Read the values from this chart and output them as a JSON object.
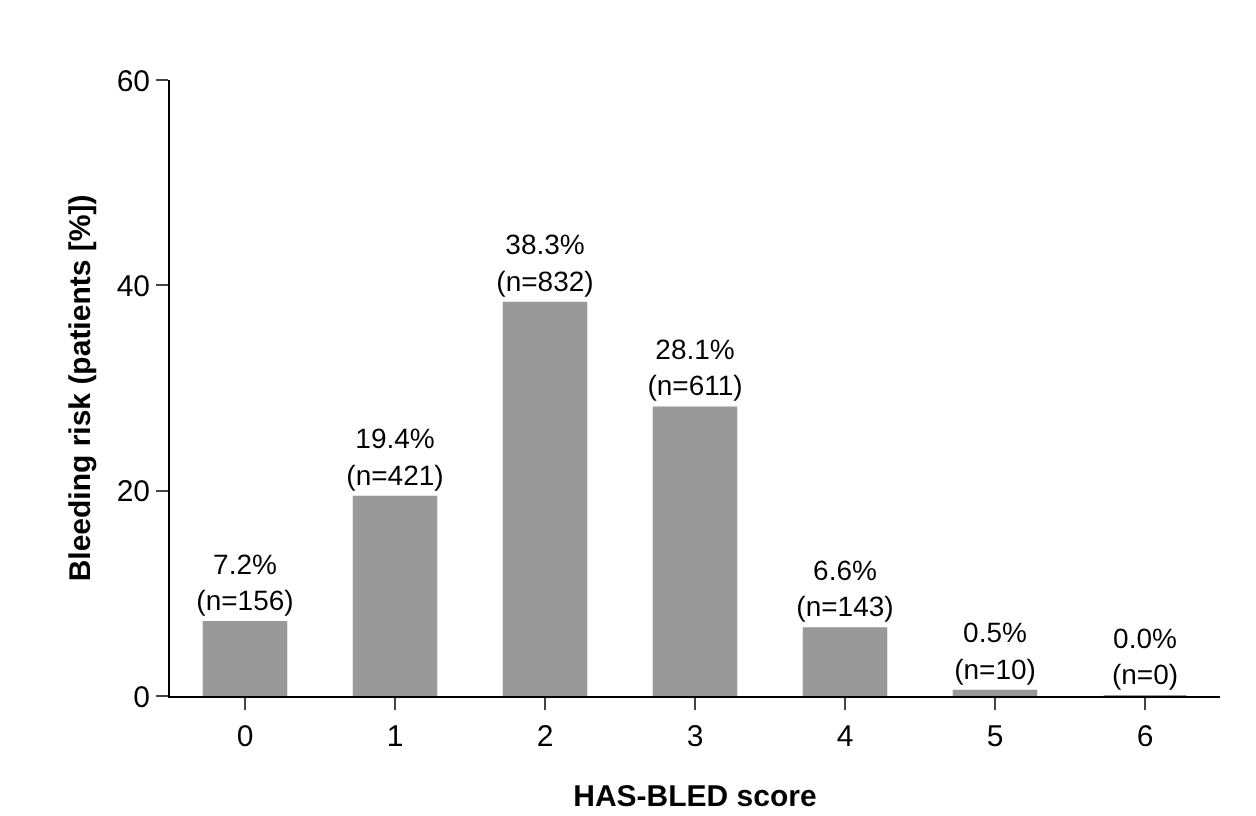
{
  "chart_data": {
    "type": "bar",
    "xlabel": "HAS-BLED score",
    "ylabel": "Bleeding risk (patients [%])",
    "categories": [
      "0",
      "1",
      "2",
      "3",
      "4",
      "5",
      "6"
    ],
    "values": [
      7.2,
      19.4,
      38.3,
      28.1,
      6.6,
      0.5,
      0.0
    ],
    "value_labels": [
      "7.2%\n(n=156)",
      "19.4%\n(n=421)",
      "38.3%\n(n=832)",
      "28.1%\n(n=611)",
      "6.6%\n(n=143)",
      "0.5%\n(n=10)",
      "0.0%\n(n=0)"
    ],
    "color": "#999999",
    "ylim": [
      0,
      60
    ],
    "yticks": [
      0,
      20,
      40,
      60
    ],
    "grid": false,
    "legend": false
  }
}
